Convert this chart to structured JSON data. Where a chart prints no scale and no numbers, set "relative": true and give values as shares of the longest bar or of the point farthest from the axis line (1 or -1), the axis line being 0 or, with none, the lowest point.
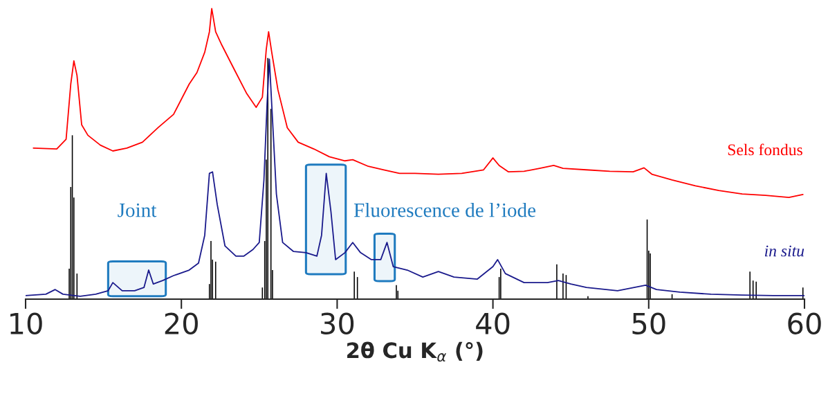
{
  "chart_data": {
    "type": "line",
    "relative": true,
    "xlabel": "2θ Cu K$_{α}$ (°)",
    "xlim": [
      10,
      60
    ],
    "xticks": [
      10,
      20,
      30,
      40,
      50,
      60
    ],
    "grid": false,
    "legend": false,
    "tick_labels": "x",
    "series": [
      {
        "name": "Sels fondus",
        "color": "#ff0000",
        "x": [
          10.5,
          12.0,
          12.6,
          12.9,
          13.1,
          13.3,
          13.6,
          14.0,
          14.8,
          15.6,
          16.5,
          17.5,
          18.5,
          19.5,
          20.5,
          21.0,
          21.5,
          21.8,
          21.95,
          22.2,
          22.6,
          23.4,
          24.2,
          24.8,
          25.2,
          25.45,
          25.6,
          25.8,
          26.2,
          26.8,
          27.5,
          28.5,
          29.5,
          30.5,
          31.0,
          32,
          33,
          34,
          35,
          36.5,
          38,
          39.4,
          40.0,
          40.4,
          41,
          42,
          43,
          43.9,
          44.5,
          46,
          47.5,
          49,
          49.7,
          50.2,
          51.5,
          53,
          54.5,
          56,
          57.5,
          59,
          59.9
        ],
        "values": [
          0.52,
          0.517,
          0.55,
          0.74,
          0.82,
          0.77,
          0.6,
          0.564,
          0.53,
          0.51,
          0.52,
          0.54,
          0.59,
          0.636,
          0.74,
          0.78,
          0.85,
          0.92,
          1.0,
          0.92,
          0.874,
          0.79,
          0.707,
          0.66,
          0.695,
          0.86,
          0.92,
          0.85,
          0.72,
          0.59,
          0.54,
          0.517,
          0.49,
          0.476,
          0.48,
          0.457,
          0.445,
          0.433,
          0.433,
          0.43,
          0.433,
          0.445,
          0.486,
          0.46,
          0.438,
          0.44,
          0.45,
          0.46,
          0.45,
          0.445,
          0.44,
          0.438,
          0.452,
          0.43,
          0.41,
          0.39,
          0.374,
          0.362,
          0.357,
          0.35,
          0.36
        ]
      },
      {
        "name": "in situ",
        "color": "#1a1a8c",
        "x": [
          10.0,
          11.3,
          11.9,
          12.4,
          13.5,
          14.5,
          15.3,
          15.6,
          16.2,
          17.0,
          17.6,
          17.9,
          18.2,
          18.8,
          19.5,
          20.5,
          21.1,
          21.5,
          21.8,
          22.0,
          22.3,
          22.8,
          23.5,
          24.0,
          24.6,
          25.0,
          25.3,
          25.5,
          25.65,
          25.8,
          26.1,
          26.5,
          27.2,
          28.0,
          28.7,
          29.0,
          29.3,
          29.6,
          29.9,
          30.5,
          31.0,
          31.5,
          32.2,
          32.8,
          33.2,
          33.6,
          34.5,
          35.5,
          36.5,
          37.5,
          39,
          40.0,
          40.3,
          40.8,
          42,
          43.5,
          44.2,
          45,
          46,
          48,
          49.8,
          50.5,
          52,
          54,
          56,
          58,
          60
        ],
        "values": [
          0.012,
          0.017,
          0.033,
          0.017,
          0.01,
          0.017,
          0.029,
          0.057,
          0.029,
          0.029,
          0.04,
          0.1,
          0.052,
          0.064,
          0.081,
          0.1,
          0.124,
          0.22,
          0.433,
          0.438,
          0.326,
          0.183,
          0.148,
          0.148,
          0.171,
          0.195,
          0.41,
          0.67,
          0.826,
          0.67,
          0.362,
          0.195,
          0.164,
          0.16,
          0.148,
          0.22,
          0.433,
          0.302,
          0.136,
          0.16,
          0.195,
          0.16,
          0.136,
          0.136,
          0.195,
          0.112,
          0.1,
          0.076,
          0.095,
          0.076,
          0.069,
          0.112,
          0.136,
          0.088,
          0.057,
          0.057,
          0.064,
          0.052,
          0.04,
          0.029,
          0.048,
          0.033,
          0.024,
          0.017,
          0.014,
          0.012,
          0.012
        ]
      },
      {
        "type": "bar",
        "color": "#000000",
        "x": [
          12.8,
          12.9,
          13.0,
          13.1,
          13.3,
          21.8,
          21.9,
          22.0,
          22.2,
          25.2,
          25.35,
          25.45,
          25.55,
          25.75,
          25.85,
          31.1,
          31.3,
          33.8,
          33.9,
          40.4,
          40.5,
          44.1,
          44.5,
          44.7,
          46.1,
          49.9,
          50.0,
          50.1,
          51.5,
          51.8,
          56.5,
          56.7,
          56.9,
          59.9
        ],
        "values": [
          0.105,
          0.386,
          0.564,
          0.35,
          0.088,
          0.052,
          0.2,
          0.136,
          0.129,
          0.04,
          0.2,
          0.48,
          0.83,
          0.655,
          0.1,
          0.095,
          0.076,
          0.048,
          0.029,
          0.076,
          0.105,
          0.12,
          0.088,
          0.083,
          0.01,
          0.274,
          0.167,
          0.157,
          0.017,
          null,
          0.095,
          0.064,
          0.06,
          0.04
        ]
      }
    ],
    "bands": [
      {
        "axis": "x",
        "from": 15.3,
        "to": 19.0,
        "color": "#1f7bbf"
      },
      {
        "axis": "x",
        "from": 28.0,
        "to": 30.55,
        "color": "#1f7bbf"
      },
      {
        "axis": "x",
        "from": 32.4,
        "to": 33.7,
        "color": "#1f7bbf"
      }
    ],
    "annotations": [
      "Joint",
      "Fluorescence de l’iode"
    ]
  }
}
